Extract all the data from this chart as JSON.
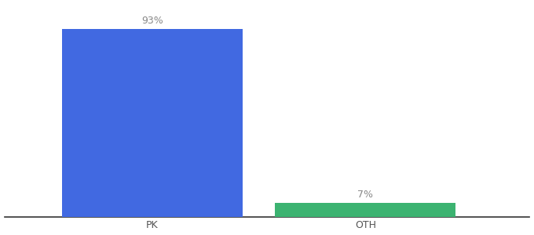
{
  "categories": [
    "PK",
    "OTH"
  ],
  "values": [
    93,
    7
  ],
  "bar_colors": [
    "#4169E1",
    "#3CB371"
  ],
  "value_labels": [
    "93%",
    "7%"
  ],
  "ylim": [
    0,
    105
  ],
  "background_color": "#ffffff",
  "label_fontsize": 9,
  "tick_fontsize": 9,
  "bar_width": 0.55,
  "x_positions": [
    0.35,
    1.0
  ],
  "xlim": [
    -0.1,
    1.5
  ]
}
